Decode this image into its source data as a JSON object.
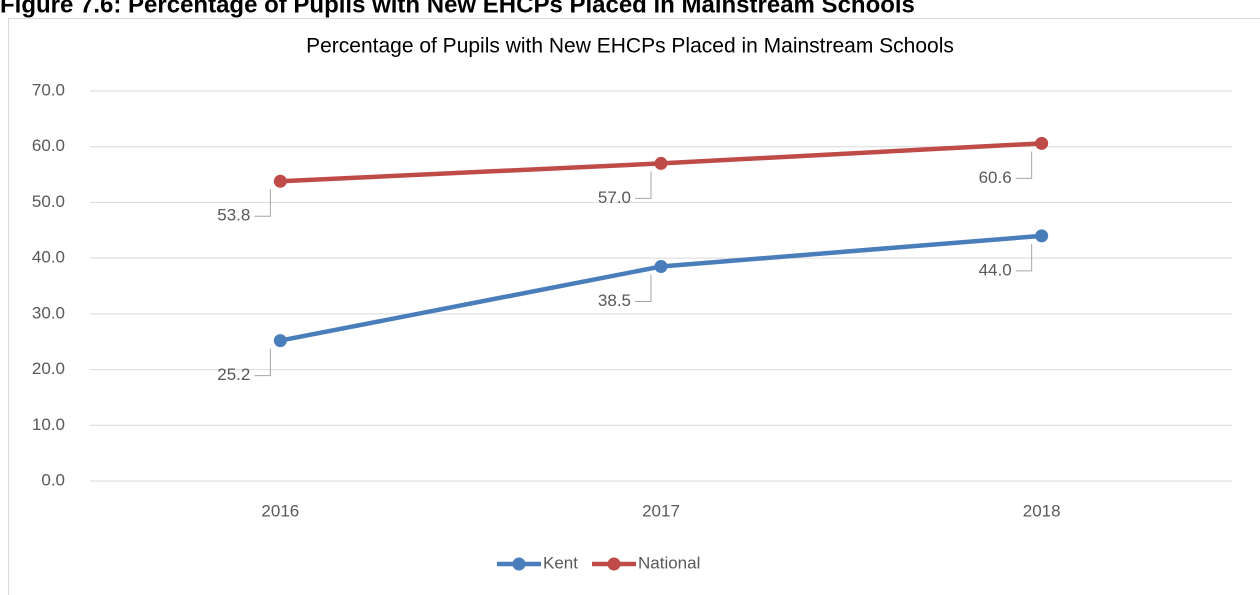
{
  "heading": "Figure 7.6: Percentage of Pupils with New EHCPs Placed in Mainstream Schools",
  "chart_data": {
    "type": "line",
    "title": "Percentage of Pupils with New EHCPs Placed in Mainstream Schools",
    "categories": [
      "2016",
      "2017",
      "2018"
    ],
    "series": [
      {
        "name": "Kent",
        "color": "#4a7ebb",
        "values": [
          25.2,
          38.5,
          44.0
        ],
        "value_labels": [
          "25.2",
          "38.5",
          "44.0"
        ]
      },
      {
        "name": "National",
        "color": "#be4b48",
        "values": [
          53.8,
          57.0,
          60.6
        ],
        "value_labels": [
          "53.8",
          "57.0",
          "60.6"
        ]
      }
    ],
    "ylim": [
      0,
      70
    ],
    "yticks": [
      {
        "value": 0,
        "label": "0.0"
      },
      {
        "value": 10,
        "label": "10.0"
      },
      {
        "value": 20,
        "label": "20.0"
      },
      {
        "value": 30,
        "label": "30.0"
      },
      {
        "value": 40,
        "label": "40.0"
      },
      {
        "value": 50,
        "label": "50.0"
      },
      {
        "value": 60,
        "label": "60.0"
      },
      {
        "value": 70,
        "label": "70.0"
      }
    ],
    "grid": true,
    "legend": "bottom"
  }
}
